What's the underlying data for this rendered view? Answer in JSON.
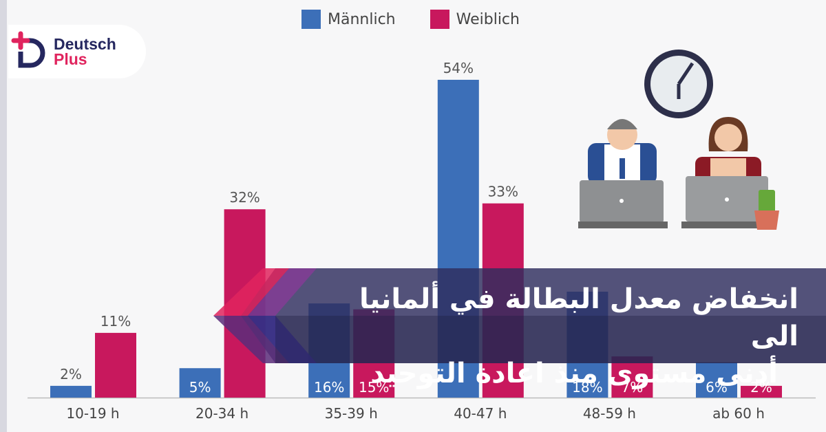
{
  "logo": {
    "line1": "Deutsch",
    "line2": "Plus"
  },
  "headline": {
    "line1": "انخفاض معدل البطالة في ألمانيا الى",
    "line2": "أدنى مستوى منذ اعادة التوحيد"
  },
  "colors": {
    "male": "#3c6fb8",
    "female": "#c8185d",
    "banner": "#2e2d5e",
    "logo_dark": "#25275f",
    "logo_accent": "#e0245e"
  },
  "chart_data": {
    "type": "bar",
    "title": "",
    "categories": [
      "10-19 h",
      "20-34 h",
      "35-39 h",
      "40-47 h",
      "48-59 h",
      "ab 60 h"
    ],
    "series": [
      {
        "name": "Männlich",
        "values": [
          2,
          5,
          16,
          54,
          18,
          6
        ],
        "labels": [
          "2%",
          "5%",
          "16%",
          "54%",
          "18%",
          "6%"
        ]
      },
      {
        "name": "Weiblich",
        "values": [
          11,
          32,
          15,
          33,
          7,
          2
        ],
        "labels": [
          "11%",
          "32%",
          "15%",
          "33%",
          "7%",
          "2%"
        ]
      }
    ],
    "ylim": [
      0,
      60
    ],
    "legend": "top-center",
    "grid": false
  }
}
